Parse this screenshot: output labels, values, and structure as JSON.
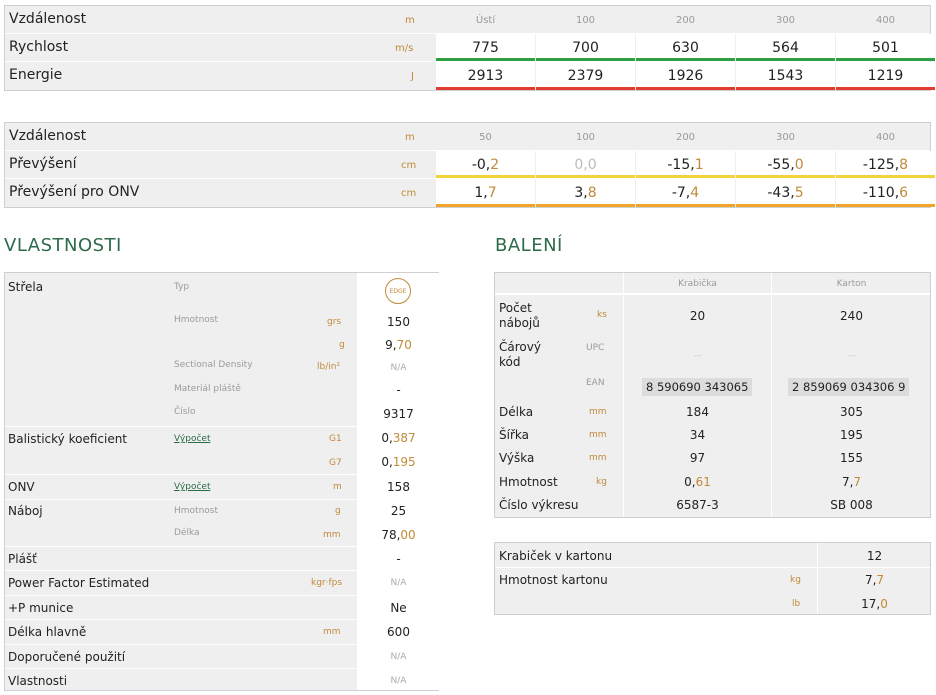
{
  "ballistics": {
    "rows": [
      {
        "label": "Vzdálenost",
        "unit": "m",
        "cells": [
          "Ústí",
          "100",
          "200",
          "300",
          "400"
        ]
      },
      {
        "label": "Rychlost",
        "unit": "m/s",
        "cells": [
          "775",
          "700",
          "630",
          "564",
          "501"
        ],
        "bar_color": "#2ea043"
      },
      {
        "label": "Energie",
        "unit": "J",
        "cells": [
          "2913",
          "2379",
          "1926",
          "1543",
          "1219"
        ],
        "bar_color": "#e03c31"
      }
    ]
  },
  "trajectory": {
    "rows": [
      {
        "label": "Vzdálenost",
        "unit": "m",
        "cells": [
          "50",
          "100",
          "200",
          "300",
          "400"
        ]
      },
      {
        "label": "Převýšení",
        "unit": "cm",
        "cells": [
          [
            "-0,",
            "2"
          ],
          [
            "0,",
            "0"
          ],
          [
            "-15,",
            "1"
          ],
          [
            "-55,",
            "0"
          ],
          [
            "-125,",
            "8"
          ]
        ],
        "bar_color": "#f2d33a"
      },
      {
        "label": "Převýšení pro ONV",
        "unit": "cm",
        "cells": [
          [
            "1,",
            "7"
          ],
          [
            "3,",
            "8"
          ],
          [
            "-7,",
            "4"
          ],
          [
            "-43,",
            "5"
          ],
          [
            "-110,",
            "6"
          ]
        ],
        "bar_color": "#f0a52a"
      }
    ]
  },
  "vlastnosti": {
    "title": "VLASTNOSTI",
    "strela": {
      "label": "Střela",
      "typ_label": "Typ",
      "typ_badge": "EDGE",
      "hmotnost_label": "Hmotnost",
      "hmotnost_unit_grs": "grs",
      "hmotnost_grs": "150",
      "hmotnost_unit_g": "g",
      "hmotnost_g_int": "9,",
      "hmotnost_g_dec": "70",
      "sd_label": "Sectional Density",
      "sd_unit": "lb/in²",
      "sd_value": "N/A",
      "material_label": "Materiál pláště",
      "material_value": "-",
      "cislo_label": "Číslo",
      "cislo_value": "9317"
    },
    "bk": {
      "label": "Balistický koeficient",
      "link": "Výpočet",
      "g1_label": "G1",
      "g1_int": "0,",
      "g1_dec": "387",
      "g7_label": "G7",
      "g7_int": "0,",
      "g7_dec": "195"
    },
    "onv": {
      "label": "ONV",
      "link": "Výpočet",
      "unit": "m",
      "value": "158"
    },
    "naboj": {
      "label": "Náboj",
      "hmotnost_label": "Hmotnost",
      "hmotnost_unit": "g",
      "hmotnost_value": "25",
      "delka_label": "Délka",
      "delka_unit": "mm",
      "delka_int": "78,",
      "delka_dec": "00"
    },
    "plast": {
      "label": "Plášť",
      "value": "-"
    },
    "pf": {
      "label": "Power Factor Estimated",
      "unit": "kgr·fps",
      "value": "N/A"
    },
    "p_munice": {
      "label": "+P munice",
      "value": "Ne"
    },
    "delka_hlavne": {
      "label": "Délka hlavně",
      "unit": "mm",
      "value": "600"
    },
    "doporucene": {
      "label": "Doporučené použití",
      "value": "N/A"
    },
    "vlastnosti_row": {
      "label": "Vlastnosti",
      "value": "N/A"
    }
  },
  "baleni": {
    "title": "BALENÍ",
    "col_krabicka": "Krabička",
    "col_karton": "Karton",
    "rows": {
      "pocet": {
        "label": "Počet nábojů",
        "unit": "ks",
        "krabicka": "20",
        "karton": "240"
      },
      "carovy": {
        "label": "Čárový kód",
        "unit_upc": "UPC",
        "upc_krabicka": "—",
        "upc_karton": "—",
        "unit_ean": "EAN",
        "ean_krabicka": "8 590690 343065",
        "ean_karton": "2 859069 034306 9"
      },
      "delka": {
        "label": "Délka",
        "unit": "mm",
        "krabicka": "184",
        "karton": "305"
      },
      "sirka": {
        "label": "Šířka",
        "unit": "mm",
        "krabicka": "34",
        "karton": "195"
      },
      "vyska": {
        "label": "Výška",
        "unit": "mm",
        "krabicka": "97",
        "karton": "155"
      },
      "hmotnost": {
        "label": "Hmotnost",
        "unit": "kg",
        "krabicka_int": "0,",
        "krabicka_dec": "61",
        "karton_int": "7,",
        "karton_dec": "7"
      },
      "cislo_vykresu": {
        "label": "Číslo výkresu",
        "krabicka": "6587-3",
        "karton": "SB 008"
      }
    },
    "kartony": {
      "krabicek_label": "Krabiček v kartonu",
      "krabicek_value": "12",
      "hmotnost_label": "Hmotnost kartonu",
      "unit_kg": "kg",
      "kg_int": "7,",
      "kg_dec": "7",
      "unit_lb": "lb",
      "lb_int": "17,",
      "lb_dec": "0"
    }
  }
}
